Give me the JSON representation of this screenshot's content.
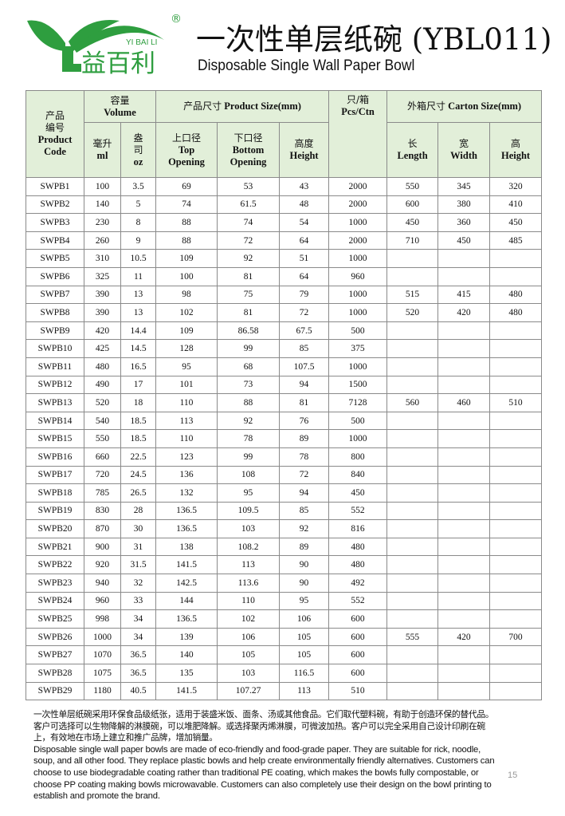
{
  "brand": {
    "name_cn": "益百利",
    "name_pinyin": "YI BAI LI",
    "registered": "®",
    "color": "#2e9e3f"
  },
  "header": {
    "title_cn": "一次性单层纸碗 (YBL011)",
    "title_en": "Disposable Single Wall Paper Bowl"
  },
  "table": {
    "header_bg": "#e2efd9",
    "h": {
      "code_cn1": "产品",
      "code_cn2": "编号",
      "code_en1": "Product",
      "code_en2": "Code",
      "volume_cn": "容量",
      "volume_en": "Volume",
      "size_cn": "产品尺寸",
      "size_en": "Product Size(mm)",
      "pcs_cn": "只/箱",
      "pcs_en": "Pcs/Ctn",
      "carton_cn": "外箱尺寸",
      "carton_en": "Carton Size(mm)",
      "ml_cn": "毫升",
      "ml_en": "ml",
      "oz_cn1": "盎",
      "oz_cn2": "司",
      "oz_en": "oz",
      "top_cn": "上口径",
      "top_en1": "Top",
      "top_en2": "Opening",
      "bottom_cn": "下口径",
      "bottom_en1": "Bottom",
      "bottom_en2": "Opening",
      "height_cn": "高度",
      "height_en": "Height",
      "len_cn": "长",
      "len_en": "Length",
      "wid_cn": "宽",
      "wid_en": "Width",
      "hgt_cn": "高",
      "hgt_en": "Height"
    },
    "rows": [
      [
        "SWPB1",
        "100",
        "3.5",
        "69",
        "53",
        "43",
        "2000",
        "550",
        "345",
        "320"
      ],
      [
        "SWPB2",
        "140",
        "5",
        "74",
        "61.5",
        "48",
        "2000",
        "600",
        "380",
        "410"
      ],
      [
        "SWPB3",
        "230",
        "8",
        "88",
        "74",
        "54",
        "1000",
        "450",
        "360",
        "450"
      ],
      [
        "SWPB4",
        "260",
        "9",
        "88",
        "72",
        "64",
        "2000",
        "710",
        "450",
        "485"
      ],
      [
        "SWPB5",
        "310",
        "10.5",
        "109",
        "92",
        "51",
        "1000",
        "",
        "",
        ""
      ],
      [
        "SWPB6",
        "325",
        "11",
        "100",
        "81",
        "64",
        "960",
        "",
        "",
        ""
      ],
      [
        "SWPB7",
        "390",
        "13",
        "98",
        "75",
        "79",
        "1000",
        "515",
        "415",
        "480"
      ],
      [
        "SWPB8",
        "390",
        "13",
        "102",
        "81",
        "72",
        "1000",
        "520",
        "420",
        "480"
      ],
      [
        "SWPB9",
        "420",
        "14.4",
        "109",
        "86.58",
        "67.5",
        "500",
        "",
        "",
        ""
      ],
      [
        "SWPB10",
        "425",
        "14.5",
        "128",
        "99",
        "85",
        "375",
        "",
        "",
        ""
      ],
      [
        "SWPB11",
        "480",
        "16.5",
        "95",
        "68",
        "107.5",
        "1000",
        "",
        "",
        ""
      ],
      [
        "SWPB12",
        "490",
        "17",
        "101",
        "73",
        "94",
        "1500",
        "",
        "",
        ""
      ],
      [
        "SWPB13",
        "520",
        "18",
        "110",
        "88",
        "81",
        "7128",
        "560",
        "460",
        "510"
      ],
      [
        "SWPB14",
        "540",
        "18.5",
        "113",
        "92",
        "76",
        "500",
        "",
        "",
        ""
      ],
      [
        "SWPB15",
        "550",
        "18.5",
        "110",
        "78",
        "89",
        "1000",
        "",
        "",
        ""
      ],
      [
        "SWPB16",
        "660",
        "22.5",
        "123",
        "99",
        "78",
        "800",
        "",
        "",
        ""
      ],
      [
        "SWPB17",
        "720",
        "24.5",
        "136",
        "108",
        "72",
        "840",
        "",
        "",
        ""
      ],
      [
        "SWPB18",
        "785",
        "26.5",
        "132",
        "95",
        "94",
        "450",
        "",
        "",
        ""
      ],
      [
        "SWPB19",
        "830",
        "28",
        "136.5",
        "109.5",
        "85",
        "552",
        "",
        "",
        ""
      ],
      [
        "SWPB20",
        "870",
        "30",
        "136.5",
        "103",
        "92",
        "816",
        "",
        "",
        ""
      ],
      [
        "SWPB21",
        "900",
        "31",
        "138",
        "108.2",
        "89",
        "480",
        "",
        "",
        ""
      ],
      [
        "SWPB22",
        "920",
        "31.5",
        "141.5",
        "113",
        "90",
        "480",
        "",
        "",
        ""
      ],
      [
        "SWPB23",
        "940",
        "32",
        "142.5",
        "113.6",
        "90",
        "492",
        "",
        "",
        ""
      ],
      [
        "SWPB24",
        "960",
        "33",
        "144",
        "110",
        "95",
        "552",
        "",
        "",
        ""
      ],
      [
        "SWPB25",
        "998",
        "34",
        "136.5",
        "102",
        "106",
        "600",
        "",
        "",
        ""
      ],
      [
        "SWPB26",
        "1000",
        "34",
        "139",
        "106",
        "105",
        "600",
        "555",
        "420",
        "700"
      ],
      [
        "SWPB27",
        "1070",
        "36.5",
        "140",
        "105",
        "105",
        "600",
        "",
        "",
        ""
      ],
      [
        "SWPB28",
        "1075",
        "36.5",
        "135",
        "103",
        "116.5",
        "600",
        "",
        "",
        ""
      ],
      [
        "SWPB29",
        "1180",
        "40.5",
        "141.5",
        "107.27",
        "113",
        "510",
        "",
        "",
        ""
      ]
    ]
  },
  "description": {
    "cn": "一次性单层纸碗采用环保食品级纸张，适用于装盛米饭、面条、汤或其他食品。它们取代塑料碗，有助于创造环保的替代品。客户可选择可以生物降解的淋膜碗，可以堆肥降解。或选择聚丙烯淋膜，可微波加热。客户可以完全采用自己设计印刷在碗上，有效地在市场上建立和推广品牌，增加销量。",
    "en": "Disposable single wall paper bowls are made of eco-friendly and food-grade paper. They are suitable for rick, noodle, soup, and all other food. They replace plastic bowls and help create environmentally friendly alternatives. Customers can choose to use biodegradable coating rather than traditional PE coating, which makes the bowls fully compostable, or choose PP coating making bowls microwavable. Customers can also completely use their design on the bowl printing to establish and promote the brand."
  },
  "page_number": "15"
}
